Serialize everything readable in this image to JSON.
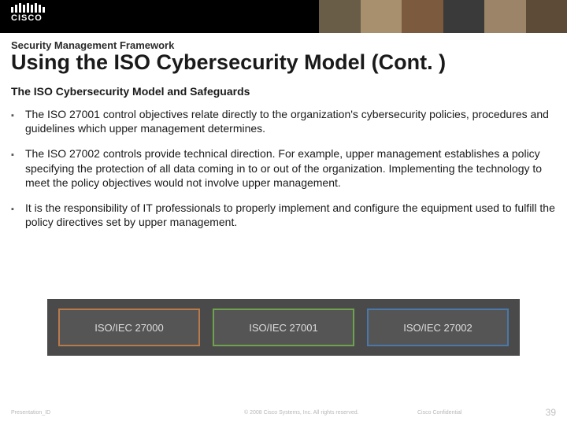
{
  "logo_text": "CISCO",
  "supertitle": "Security Management Framework",
  "title": "Using the ISO Cybersecurity Model (Cont. )",
  "subtitle": "The ISO Cybersecurity Model and Safeguards",
  "bullets": [
    "The ISO 27001 control objectives relate directly to the organization's cybersecurity policies, procedures and guidelines which upper management determines.",
    "The ISO 27002 controls provide technical direction. For example, upper management establishes a policy specifying the protection of all data coming in to or out of the organization. Implementing the technology to meet the policy objectives would not involve upper management.",
    "It is the responsibility of IT professionals to properly implement and configure the equipment used to fulfill the policy directives set by upper management."
  ],
  "boxes": {
    "panel_bg": "#4a4a4a",
    "items": [
      {
        "label": "ISO/IEC 27000",
        "border": "#b97a4a",
        "fill": "#555555"
      },
      {
        "label": "ISO/IEC 27001",
        "border": "#6fa24e",
        "fill": "#555555"
      },
      {
        "label": "ISO/IEC 27002",
        "border": "#4a78a8",
        "fill": "#555555"
      }
    ],
    "text_color": "#dddddd",
    "label_fontsize": 13
  },
  "footer": {
    "presentation_id": "Presentation_ID",
    "copyright": "© 2008 Cisco Systems, Inc. All rights reserved.",
    "confidential": "Cisco Confidential",
    "page_number": "39"
  },
  "colors": {
    "bg": "#ffffff",
    "text": "#1a1a1a",
    "muted": "#b8b8b8"
  },
  "fonts": {
    "title_size": 27,
    "supertitle_size": 13,
    "subtitle_size": 14,
    "body_size": 14,
    "footer_size": 7
  }
}
